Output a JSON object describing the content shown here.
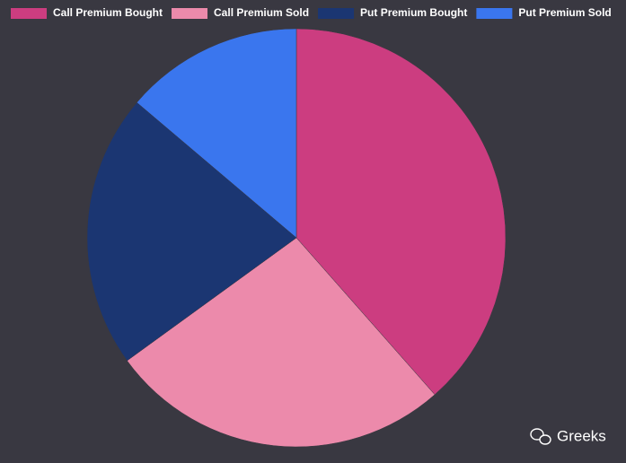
{
  "chart_data": {
    "type": "pie",
    "categories": [
      "Call Premium Bought",
      "Call Premium Sold",
      "Put Premium Bought",
      "Put Premium Sold"
    ],
    "values": [
      38.5,
      26.5,
      21.2,
      13.8
    ],
    "colors": [
      "#cc3d80",
      "#ec8aab",
      "#1b3672",
      "#3a76ee"
    ],
    "legend": "top"
  },
  "watermark": "Greeks"
}
